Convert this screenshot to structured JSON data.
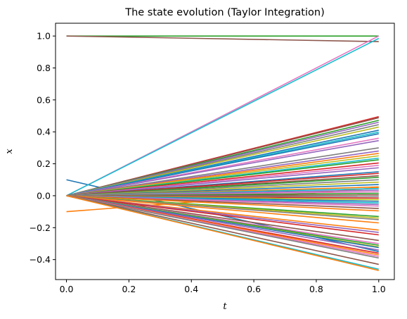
{
  "chart_data": {
    "type": "line",
    "title": "The state evolution (Taylor Integration)",
    "xlabel": "t",
    "ylabel": "x",
    "xlim": [
      -0.035,
      1.05
    ],
    "ylim": [
      -0.525,
      1.08
    ],
    "xticks": [
      {
        "value": 0.0,
        "label": "0.0"
      },
      {
        "value": 0.2,
        "label": "0.2"
      },
      {
        "value": 0.4,
        "label": "0.4"
      },
      {
        "value": 0.6,
        "label": "0.6"
      },
      {
        "value": 0.8,
        "label": "0.8"
      },
      {
        "value": 1.0,
        "label": "1.0"
      }
    ],
    "yticks": [
      {
        "value": -0.4,
        "label": "−0.4"
      },
      {
        "value": -0.2,
        "label": "−0.2"
      },
      {
        "value": 0.0,
        "label": "0.0"
      },
      {
        "value": 0.2,
        "label": "0.2"
      },
      {
        "value": 0.4,
        "label": "0.4"
      },
      {
        "value": 0.6,
        "label": "0.6"
      },
      {
        "value": 0.8,
        "label": "0.8"
      },
      {
        "value": 1.0,
        "label": "1.0"
      }
    ],
    "grid": false,
    "x": [
      0.0,
      1.0
    ],
    "series": [
      {
        "color": "#1f77b4",
        "values": [
          0.1,
          -0.35
        ]
      },
      {
        "color": "#ff7f0e",
        "values": [
          -0.1,
          0.05
        ]
      },
      {
        "color": "#2ca02c",
        "values": [
          1.0,
          1.0
        ]
      },
      {
        "color": "#8c564b",
        "values": [
          1.0,
          0.965
        ]
      },
      {
        "color": "#e377c2",
        "values": [
          0.0,
          1.0
        ]
      },
      {
        "color": "#17becf",
        "values": [
          0.0,
          0.985
        ]
      },
      {
        "color": "#d62728",
        "values": [
          0.0,
          0.495
        ]
      },
      {
        "color": "#8c564b",
        "values": [
          0.0,
          0.488
        ]
      },
      {
        "color": "#2ca02c",
        "values": [
          0.0,
          0.472
        ]
      },
      {
        "color": "#9467bd",
        "values": [
          0.0,
          0.46
        ]
      },
      {
        "color": "#7f7f7f",
        "values": [
          0.0,
          0.445
        ]
      },
      {
        "color": "#bcbd22",
        "values": [
          0.0,
          0.43
        ]
      },
      {
        "color": "#1f77b4",
        "values": [
          0.0,
          0.41
        ]
      },
      {
        "color": "#17becf",
        "values": [
          0.0,
          0.398
        ]
      },
      {
        "color": "#1f77b4",
        "values": [
          0.0,
          0.388
        ]
      },
      {
        "color": "#e377c2",
        "values": [
          0.0,
          0.36
        ]
      },
      {
        "color": "#9467bd",
        "values": [
          0.0,
          0.345
        ]
      },
      {
        "color": "#7f7f7f",
        "values": [
          0.0,
          0.3
        ]
      },
      {
        "color": "#9467bd",
        "values": [
          0.0,
          0.28
        ]
      },
      {
        "color": "#ff7f0e",
        "values": [
          0.0,
          0.265
        ]
      },
      {
        "color": "#bcbd22",
        "values": [
          0.0,
          0.25
        ]
      },
      {
        "color": "#17becf",
        "values": [
          0.0,
          0.235
        ]
      },
      {
        "color": "#2ca02c",
        "values": [
          0.0,
          0.225
        ]
      },
      {
        "color": "#d62728",
        "values": [
          0.0,
          0.205
        ]
      },
      {
        "color": "#e377c2",
        "values": [
          0.0,
          0.19
        ]
      },
      {
        "color": "#9467bd",
        "values": [
          0.0,
          0.175
        ]
      },
      {
        "color": "#1f77b4",
        "values": [
          0.0,
          0.15
        ]
      },
      {
        "color": "#d62728",
        "values": [
          0.0,
          0.14
        ]
      },
      {
        "color": "#8c564b",
        "values": [
          0.0,
          0.125
        ]
      },
      {
        "color": "#2ca02c",
        "values": [
          0.0,
          0.115
        ]
      },
      {
        "color": "#7f7f7f",
        "values": [
          0.0,
          0.1
        ]
      },
      {
        "color": "#bcbd22",
        "values": [
          0.0,
          0.085
        ]
      },
      {
        "color": "#1f77b4",
        "values": [
          0.0,
          0.07
        ]
      },
      {
        "color": "#ff7f0e",
        "values": [
          0.0,
          0.055
        ]
      },
      {
        "color": "#17becf",
        "values": [
          0.0,
          0.045
        ]
      },
      {
        "color": "#9467bd",
        "values": [
          0.0,
          0.035
        ]
      },
      {
        "color": "#e377c2",
        "values": [
          0.0,
          0.025
        ]
      },
      {
        "color": "#2ca02c",
        "values": [
          0.0,
          0.015
        ]
      },
      {
        "color": "#8c564b",
        "values": [
          0.0,
          0.005
        ]
      },
      {
        "color": "#7f7f7f",
        "values": [
          0.0,
          -0.005
        ]
      },
      {
        "color": "#d62728",
        "values": [
          0.0,
          -0.015
        ]
      },
      {
        "color": "#bcbd22",
        "values": [
          0.0,
          -0.025
        ]
      },
      {
        "color": "#1f77b4",
        "values": [
          0.0,
          -0.035
        ]
      },
      {
        "color": "#17becf",
        "values": [
          0.0,
          -0.045
        ]
      },
      {
        "color": "#9467bd",
        "values": [
          0.0,
          -0.055
        ]
      },
      {
        "color": "#e377c2",
        "values": [
          0.0,
          -0.065
        ]
      },
      {
        "color": "#8c564b",
        "values": [
          0.0,
          -0.08
        ]
      },
      {
        "color": "#ff7f0e",
        "values": [
          0.0,
          -0.095
        ]
      },
      {
        "color": "#2ca02c",
        "values": [
          0.0,
          -0.13
        ]
      },
      {
        "color": "#bcbd22",
        "values": [
          0.0,
          -0.14
        ]
      },
      {
        "color": "#7f7f7f",
        "values": [
          0.0,
          -0.15
        ]
      },
      {
        "color": "#ff7f0e",
        "values": [
          0.0,
          -0.17
        ]
      },
      {
        "color": "#ff7f0e",
        "values": [
          0.0,
          -0.215
        ]
      },
      {
        "color": "#9467bd",
        "values": [
          0.0,
          -0.23
        ]
      },
      {
        "color": "#d62728",
        "values": [
          0.0,
          -0.245
        ]
      },
      {
        "color": "#8c564b",
        "values": [
          0.0,
          -0.28
        ]
      },
      {
        "color": "#e377c2",
        "values": [
          0.0,
          -0.3
        ]
      },
      {
        "color": "#2ca02c",
        "values": [
          0.0,
          -0.31
        ]
      },
      {
        "color": "#bcbd22",
        "values": [
          0.0,
          -0.32
        ]
      },
      {
        "color": "#1f77b4",
        "values": [
          0.0,
          -0.325
        ]
      },
      {
        "color": "#9467bd",
        "values": [
          0.0,
          -0.34
        ]
      },
      {
        "color": "#d62728",
        "values": [
          0.0,
          -0.36
        ]
      },
      {
        "color": "#ff7f0e",
        "values": [
          0.0,
          -0.37
        ]
      },
      {
        "color": "#e377c2",
        "values": [
          0.0,
          -0.38
        ]
      },
      {
        "color": "#7f7f7f",
        "values": [
          0.0,
          -0.39
        ]
      },
      {
        "color": "#8c564b",
        "values": [
          0.0,
          -0.43
        ]
      },
      {
        "color": "#17becf",
        "values": [
          0.0,
          -0.46
        ]
      },
      {
        "color": "#ff7f0e",
        "values": [
          0.0,
          -0.468
        ]
      }
    ]
  }
}
